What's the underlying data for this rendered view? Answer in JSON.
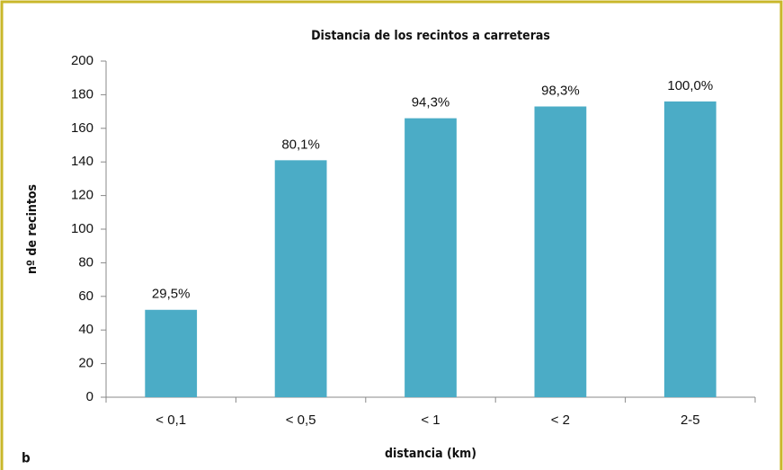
{
  "chart_data": {
    "type": "bar",
    "title": "Distancia de los recintos a carreteras",
    "xlabel": "distancia (km)",
    "ylabel": "nº de recintos",
    "panel_label": "b",
    "categories": [
      "< 0,1",
      "< 0,5",
      "< 1",
      "< 2",
      "2-5"
    ],
    "values": [
      52,
      141,
      166,
      173,
      176
    ],
    "annotations": [
      "29,5%",
      "80,1%",
      "94,3%",
      "98,3%",
      "100,0%"
    ],
    "color": "#4bacc6",
    "ylim": [
      0,
      200
    ],
    "yticks": [
      0,
      20,
      40,
      60,
      80,
      100,
      120,
      140,
      160,
      180,
      200
    ]
  }
}
